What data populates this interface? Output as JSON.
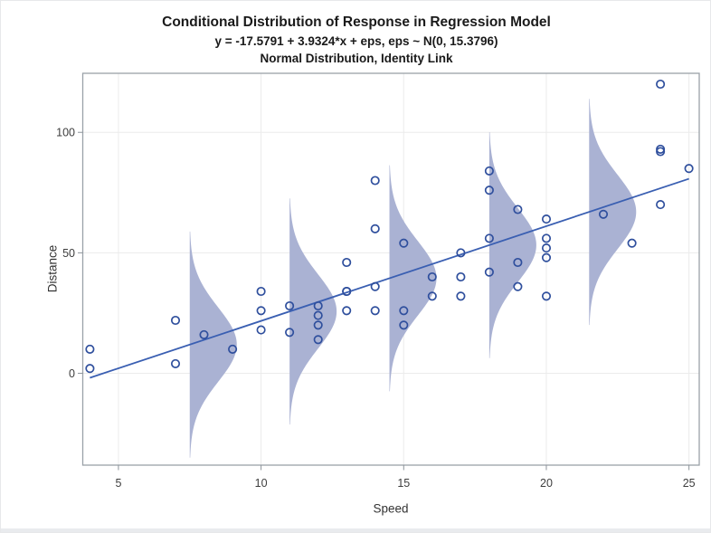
{
  "chart_data": {
    "type": "scatter",
    "title": "Conditional Distribution of Response in Regression Model",
    "subtitle1": "y = -17.5791 + 3.9324*x + eps, eps ~ N(0, 15.3796)",
    "subtitle2": "Normal Distribution, Identity Link",
    "xlabel": "Speed",
    "ylabel": "Distance",
    "x_ticks": [
      5,
      10,
      15,
      20,
      25
    ],
    "y_ticks": [
      0,
      50,
      100
    ],
    "x_range": [
      3.75,
      25.36
    ],
    "y_range": [
      -38.1,
      124.5
    ],
    "grid": true,
    "points": [
      [
        4,
        2
      ],
      [
        4,
        10
      ],
      [
        7,
        4
      ],
      [
        7,
        22
      ],
      [
        8,
        16
      ],
      [
        9,
        10
      ],
      [
        10,
        18
      ],
      [
        10,
        26
      ],
      [
        10,
        34
      ],
      [
        11,
        17
      ],
      [
        11,
        28
      ],
      [
        12,
        14
      ],
      [
        12,
        20
      ],
      [
        12,
        24
      ],
      [
        12,
        28
      ],
      [
        13,
        26
      ],
      [
        13,
        34
      ],
      [
        13,
        34
      ],
      [
        13,
        46
      ],
      [
        14,
        26
      ],
      [
        14,
        36
      ],
      [
        14,
        60
      ],
      [
        14,
        80
      ],
      [
        15,
        20
      ],
      [
        15,
        26
      ],
      [
        15,
        54
      ],
      [
        16,
        32
      ],
      [
        16,
        40
      ],
      [
        17,
        32
      ],
      [
        17,
        40
      ],
      [
        17,
        50
      ],
      [
        18,
        42
      ],
      [
        18,
        56
      ],
      [
        18,
        76
      ],
      [
        18,
        84
      ],
      [
        19,
        36
      ],
      [
        19,
        46
      ],
      [
        19,
        68
      ],
      [
        20,
        32
      ],
      [
        20,
        48
      ],
      [
        20,
        52
      ],
      [
        20,
        56
      ],
      [
        20,
        64
      ],
      [
        22,
        66
      ],
      [
        23,
        54
      ],
      [
        24,
        70
      ],
      [
        24,
        92
      ],
      [
        24,
        93
      ],
      [
        24,
        120
      ],
      [
        25,
        85
      ]
    ],
    "regression_line": {
      "intercept": -17.5791,
      "slope": 3.9324,
      "x_from": 4,
      "x_to": 25
    },
    "residual_sd": 15.3796,
    "density_curves": {
      "x_positions": [
        7.5,
        11,
        14.5,
        18,
        21.5
      ],
      "sd": 15.3796,
      "extent_sd": 3.05
    },
    "colors": {
      "marker": "#2f4f9d",
      "line": "#3a5fb2",
      "density_fill": "#aab2d3",
      "grid": "#ebebeb",
      "frame": "#9aa1a8",
      "tick": "#8d949b",
      "tick_text": "#3d3d3d",
      "title_text": "#1a1a1a"
    }
  }
}
